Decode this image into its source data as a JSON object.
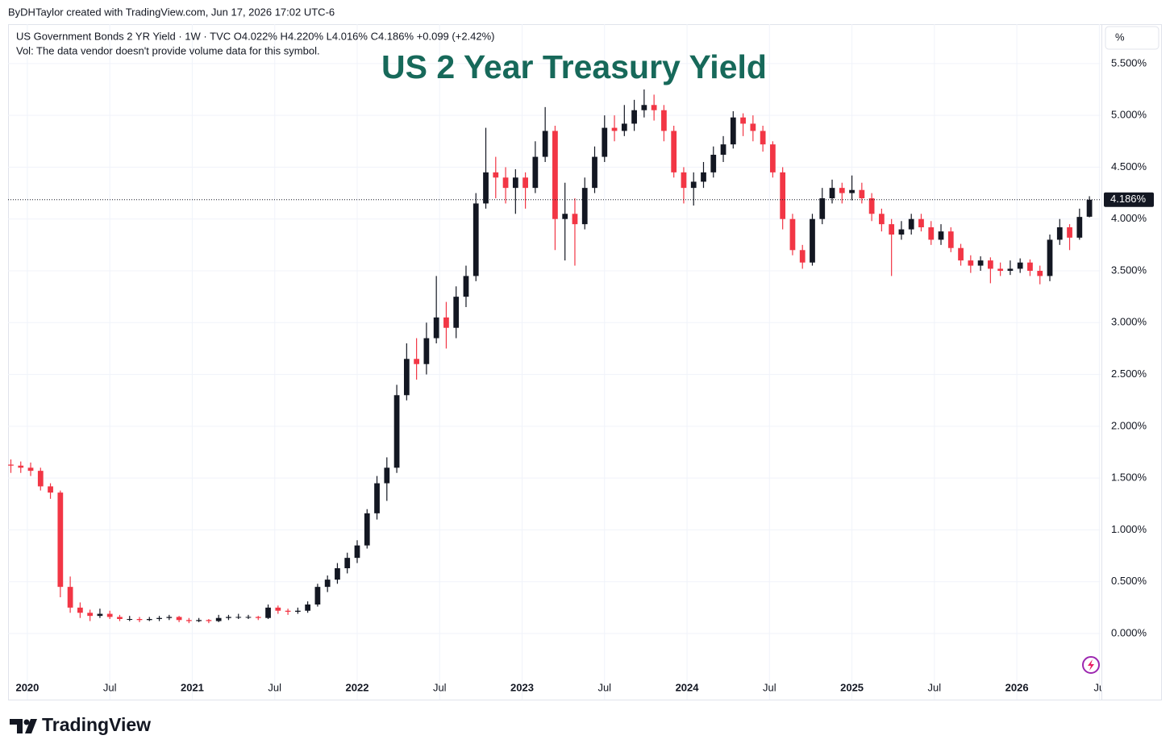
{
  "header": {
    "credit": "ByDHTaylor created with TradingView.com, Jun 17, 2026 17:02 UTC-6",
    "legend": "US Government Bonds 2 YR Yield · 1W · TVC  O4.022%  H4.220%  L4.016%  C4.186%  +0.099 (+2.42%)",
    "vol_note": "Vol: The data vendor doesn't provide volume data for this symbol.",
    "unit": "%"
  },
  "footer": {
    "logo": "TradingView"
  },
  "chart_data": {
    "type": "candlestick",
    "title": "US 2 Year Treasury Yield",
    "up_color": "#131722",
    "down_color": "#f23645",
    "grid": true,
    "xlim": [
      2019.883,
      2026.508
    ],
    "ylim": [
      -0.42,
      5.88
    ],
    "xticks": [
      {
        "value": 2020,
        "label": "2020"
      },
      {
        "value": 2020.5,
        "label": "Jul"
      },
      {
        "value": 2021,
        "label": "2021"
      },
      {
        "value": 2021.5,
        "label": "Jul"
      },
      {
        "value": 2022,
        "label": "2022"
      },
      {
        "value": 2022.5,
        "label": "Jul"
      },
      {
        "value": 2023,
        "label": "2023"
      },
      {
        "value": 2023.5,
        "label": "Jul"
      },
      {
        "value": 2024,
        "label": "2024"
      },
      {
        "value": 2024.5,
        "label": "Jul"
      },
      {
        "value": 2025,
        "label": "2025"
      },
      {
        "value": 2025.5,
        "label": "Jul"
      },
      {
        "value": 2026,
        "label": "2026"
      },
      {
        "value": 2026.5,
        "label": "Ju"
      }
    ],
    "yticks": [
      {
        "value": 0,
        "label": "0.000%"
      },
      {
        "value": 0.5,
        "label": "0.500%"
      },
      {
        "value": 1,
        "label": "1.000%"
      },
      {
        "value": 1.5,
        "label": "1.500%"
      },
      {
        "value": 2,
        "label": "2.000%"
      },
      {
        "value": 2.5,
        "label": "2.500%"
      },
      {
        "value": 3,
        "label": "3.000%"
      },
      {
        "value": 3.5,
        "label": "3.500%"
      },
      {
        "value": 4,
        "label": "4.000%"
      },
      {
        "value": 4.5,
        "label": "4.500%"
      },
      {
        "value": 5,
        "label": "5.000%"
      },
      {
        "value": 5.5,
        "label": "5.500%"
      }
    ],
    "last_price": {
      "value": 4.186,
      "label": "4.186%"
    },
    "x": [
      2019.9,
      2019.96,
      2020.02,
      2020.08,
      2020.14,
      2020.2,
      2020.26,
      2020.32,
      2020.38,
      2020.44,
      2020.5,
      2020.56,
      2020.62,
      2020.68,
      2020.74,
      2020.8,
      2020.86,
      2020.92,
      2020.98,
      2021.04,
      2021.1,
      2021.16,
      2021.22,
      2021.28,
      2021.34,
      2021.4,
      2021.46,
      2021.52,
      2021.58,
      2021.64,
      2021.7,
      2021.76,
      2021.82,
      2021.88,
      2021.94,
      2022.0,
      2022.06,
      2022.12,
      2022.18,
      2022.24,
      2022.3,
      2022.36,
      2022.42,
      2022.48,
      2022.54,
      2022.6,
      2022.66,
      2022.72,
      2022.78,
      2022.84,
      2022.9,
      2022.96,
      2023.02,
      2023.08,
      2023.14,
      2023.2,
      2023.26,
      2023.32,
      2023.38,
      2023.44,
      2023.5,
      2023.56,
      2023.62,
      2023.68,
      2023.74,
      2023.8,
      2023.86,
      2023.92,
      2023.98,
      2024.04,
      2024.1,
      2024.16,
      2024.22,
      2024.28,
      2024.34,
      2024.4,
      2024.46,
      2024.52,
      2024.58,
      2024.64,
      2024.7,
      2024.76,
      2024.82,
      2024.88,
      2024.94,
      2025.0,
      2025.06,
      2025.12,
      2025.18,
      2025.24,
      2025.3,
      2025.36,
      2025.42,
      2025.48,
      2025.54,
      2025.6,
      2025.66,
      2025.72,
      2025.78,
      2025.84,
      2025.9,
      2025.96,
      2026.02,
      2026.08,
      2026.14,
      2026.2,
      2026.26,
      2026.32,
      2026.38,
      2026.44
    ],
    "ohlc": [
      [
        1.63,
        1.68,
        1.55,
        1.62
      ],
      [
        1.62,
        1.66,
        1.55,
        1.6
      ],
      [
        1.6,
        1.65,
        1.52,
        1.57
      ],
      [
        1.57,
        1.6,
        1.38,
        1.42
      ],
      [
        1.42,
        1.45,
        1.3,
        1.36
      ],
      [
        1.36,
        1.38,
        0.35,
        0.45
      ],
      [
        0.45,
        0.55,
        0.2,
        0.25
      ],
      [
        0.25,
        0.3,
        0.15,
        0.2
      ],
      [
        0.2,
        0.23,
        0.12,
        0.17
      ],
      [
        0.17,
        0.24,
        0.15,
        0.19
      ],
      [
        0.19,
        0.22,
        0.14,
        0.16
      ],
      [
        0.16,
        0.18,
        0.12,
        0.14
      ],
      [
        0.14,
        0.17,
        0.12,
        0.14
      ],
      [
        0.14,
        0.16,
        0.11,
        0.13
      ],
      [
        0.13,
        0.16,
        0.12,
        0.14
      ],
      [
        0.14,
        0.17,
        0.12,
        0.15
      ],
      [
        0.15,
        0.18,
        0.13,
        0.16
      ],
      [
        0.16,
        0.17,
        0.11,
        0.13
      ],
      [
        0.13,
        0.15,
        0.1,
        0.12
      ],
      [
        0.12,
        0.15,
        0.11,
        0.13
      ],
      [
        0.13,
        0.14,
        0.1,
        0.12
      ],
      [
        0.12,
        0.18,
        0.11,
        0.15
      ],
      [
        0.15,
        0.18,
        0.13,
        0.16
      ],
      [
        0.16,
        0.19,
        0.14,
        0.16
      ],
      [
        0.16,
        0.18,
        0.14,
        0.16
      ],
      [
        0.16,
        0.17,
        0.13,
        0.15
      ],
      [
        0.15,
        0.28,
        0.14,
        0.25
      ],
      [
        0.25,
        0.27,
        0.19,
        0.22
      ],
      [
        0.22,
        0.24,
        0.18,
        0.21
      ],
      [
        0.21,
        0.25,
        0.19,
        0.22
      ],
      [
        0.22,
        0.31,
        0.2,
        0.28
      ],
      [
        0.28,
        0.48,
        0.26,
        0.45
      ],
      [
        0.45,
        0.56,
        0.4,
        0.52
      ],
      [
        0.52,
        0.68,
        0.48,
        0.63
      ],
      [
        0.63,
        0.78,
        0.58,
        0.73
      ],
      [
        0.73,
        0.9,
        0.68,
        0.85
      ],
      [
        0.85,
        1.2,
        0.82,
        1.16
      ],
      [
        1.16,
        1.52,
        1.1,
        1.45
      ],
      [
        1.45,
        1.7,
        1.28,
        1.6
      ],
      [
        1.6,
        2.4,
        1.55,
        2.3
      ],
      [
        2.3,
        2.8,
        2.25,
        2.65
      ],
      [
        2.65,
        2.85,
        2.45,
        2.6
      ],
      [
        2.6,
        3.0,
        2.5,
        2.85
      ],
      [
        2.85,
        3.45,
        2.8,
        3.05
      ],
      [
        3.05,
        3.2,
        2.75,
        2.95
      ],
      [
        2.95,
        3.35,
        2.85,
        3.25
      ],
      [
        3.25,
        3.55,
        3.15,
        3.45
      ],
      [
        3.45,
        4.25,
        3.4,
        4.15
      ],
      [
        4.15,
        4.88,
        4.1,
        4.45
      ],
      [
        4.45,
        4.6,
        4.2,
        4.4
      ],
      [
        4.4,
        4.5,
        4.15,
        4.3
      ],
      [
        4.3,
        4.48,
        4.05,
        4.4
      ],
      [
        4.4,
        4.45,
        4.1,
        4.3
      ],
      [
        4.3,
        4.75,
        4.25,
        4.6
      ],
      [
        4.6,
        5.08,
        4.55,
        4.85
      ],
      [
        4.85,
        4.9,
        3.7,
        4.0
      ],
      [
        4.0,
        4.35,
        3.6,
        4.05
      ],
      [
        4.05,
        4.2,
        3.55,
        3.95
      ],
      [
        3.95,
        4.4,
        3.9,
        4.3
      ],
      [
        4.3,
        4.7,
        4.25,
        4.6
      ],
      [
        4.6,
        5.0,
        4.55,
        4.88
      ],
      [
        4.88,
        5.0,
        4.75,
        4.85
      ],
      [
        4.85,
        5.1,
        4.8,
        4.92
      ],
      [
        4.92,
        5.15,
        4.85,
        5.05
      ],
      [
        5.05,
        5.25,
        4.98,
        5.1
      ],
      [
        5.1,
        5.2,
        4.95,
        5.05
      ],
      [
        5.05,
        5.1,
        4.75,
        4.85
      ],
      [
        4.85,
        4.9,
        4.4,
        4.45
      ],
      [
        4.45,
        4.5,
        4.15,
        4.3
      ],
      [
        4.3,
        4.45,
        4.13,
        4.36
      ],
      [
        4.36,
        4.55,
        4.3,
        4.45
      ],
      [
        4.45,
        4.7,
        4.4,
        4.62
      ],
      [
        4.62,
        4.8,
        4.55,
        4.72
      ],
      [
        4.72,
        5.04,
        4.68,
        4.98
      ],
      [
        4.98,
        5.02,
        4.8,
        4.92
      ],
      [
        4.92,
        5.0,
        4.75,
        4.85
      ],
      [
        4.85,
        4.9,
        4.65,
        4.72
      ],
      [
        4.72,
        4.75,
        4.4,
        4.45
      ],
      [
        4.45,
        4.5,
        3.9,
        4.0
      ],
      [
        4.0,
        4.05,
        3.65,
        3.7
      ],
      [
        3.7,
        3.75,
        3.52,
        3.58
      ],
      [
        3.58,
        4.05,
        3.55,
        4.0
      ],
      [
        4.0,
        4.3,
        3.95,
        4.2
      ],
      [
        4.2,
        4.38,
        4.15,
        4.3
      ],
      [
        4.3,
        4.35,
        4.15,
        4.25
      ],
      [
        4.25,
        4.42,
        4.18,
        4.28
      ],
      [
        4.28,
        4.35,
        4.15,
        4.2
      ],
      [
        4.2,
        4.25,
        3.98,
        4.05
      ],
      [
        4.05,
        4.1,
        3.88,
        3.95
      ],
      [
        3.95,
        4.0,
        3.45,
        3.85
      ],
      [
        3.85,
        3.98,
        3.8,
        3.9
      ],
      [
        3.9,
        4.05,
        3.85,
        4.0
      ],
      [
        4.0,
        4.05,
        3.88,
        3.92
      ],
      [
        3.92,
        3.98,
        3.75,
        3.8
      ],
      [
        3.8,
        3.95,
        3.75,
        3.88
      ],
      [
        3.88,
        3.92,
        3.68,
        3.72
      ],
      [
        3.72,
        3.76,
        3.55,
        3.6
      ],
      [
        3.6,
        3.65,
        3.48,
        3.55
      ],
      [
        3.55,
        3.64,
        3.5,
        3.6
      ],
      [
        3.6,
        3.63,
        3.38,
        3.52
      ],
      [
        3.52,
        3.58,
        3.45,
        3.5
      ],
      [
        3.5,
        3.6,
        3.46,
        3.52
      ],
      [
        3.52,
        3.62,
        3.48,
        3.58
      ],
      [
        3.58,
        3.61,
        3.45,
        3.5
      ],
      [
        3.5,
        3.55,
        3.37,
        3.45
      ],
      [
        3.45,
        3.85,
        3.4,
        3.8
      ],
      [
        3.8,
        4.0,
        3.75,
        3.92
      ],
      [
        3.92,
        3.95,
        3.7,
        3.82
      ],
      [
        3.82,
        4.1,
        3.8,
        4.02
      ],
      [
        4.022,
        4.22,
        4.016,
        4.186
      ]
    ]
  }
}
